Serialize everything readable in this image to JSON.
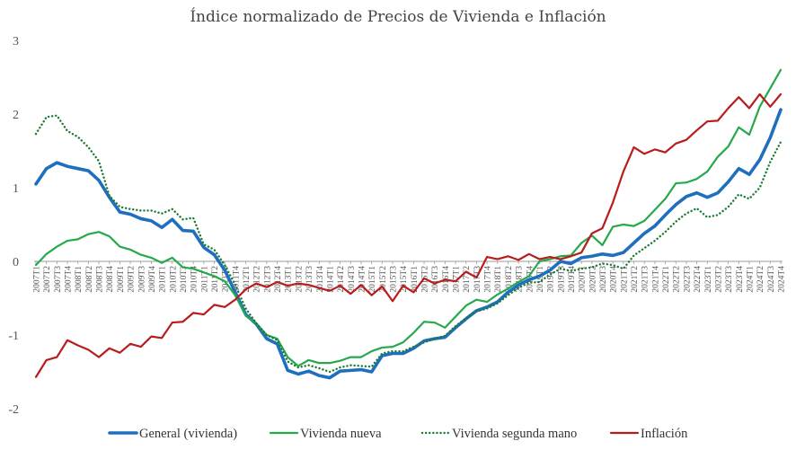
{
  "chart_data": {
    "type": "line",
    "title": "Índice normalizado de Precios de Vivienda e Inflación",
    "xlabel": "",
    "ylabel": "",
    "ylim": [
      -2,
      3
    ],
    "yticks": [
      3,
      2,
      1,
      0,
      -1,
      -2
    ],
    "grid": false,
    "legend_position": "bottom",
    "categories": [
      "2007T1",
      "2007T2",
      "2007T3",
      "2007T4",
      "2008T1",
      "2008T2",
      "2008T3",
      "2008T4",
      "2009T1",
      "2009T2",
      "2009T3",
      "2009T4",
      "2010T1",
      "2010T2",
      "2010T3",
      "2010T4",
      "2011T1",
      "2011T2",
      "2011T3",
      "2011T4",
      "2012T1",
      "2012T2",
      "2012T3",
      "2012T4",
      "2013T1",
      "2013T2",
      "2013T3",
      "2013T4",
      "2014T1",
      "2014T2",
      "2014T3",
      "2014T4",
      "2015T1",
      "2015T2",
      "2015T3",
      "2015T4",
      "2016T1",
      "2016T2",
      "2016T3",
      "2016T4",
      "2017T1",
      "2017T2",
      "2017T3",
      "2017T4",
      "2018T1",
      "2018T2",
      "2018T3",
      "2018T4",
      "2019T1",
      "2019T2",
      "2019T3",
      "2019T4",
      "2020T1",
      "2020T2",
      "2020T3",
      "2020T4",
      "2021T1",
      "2021T2",
      "2021T3",
      "2021T4",
      "2022T1",
      "2022T2",
      "2022T3",
      "2022T4",
      "2023T1",
      "2023T2",
      "2023T3",
      "2023T4",
      "2024T1",
      "2024T2",
      "2024T3",
      "2024T4"
    ],
    "series": [
      {
        "name": "General (vivienda)",
        "color": "#1f6fbf",
        "style": "solid-thick",
        "values": [
          1.05,
          1.26,
          1.34,
          1.29,
          1.26,
          1.23,
          1.1,
          0.87,
          0.67,
          0.64,
          0.58,
          0.55,
          0.46,
          0.57,
          0.42,
          0.41,
          0.19,
          0.09,
          -0.12,
          -0.42,
          -0.72,
          -0.85,
          -1.05,
          -1.12,
          -1.48,
          -1.53,
          -1.49,
          -1.55,
          -1.58,
          -1.49,
          -1.48,
          -1.47,
          -1.5,
          -1.28,
          -1.25,
          -1.25,
          -1.18,
          -1.08,
          -1.05,
          -1.03,
          -0.9,
          -0.78,
          -0.67,
          -0.62,
          -0.55,
          -0.42,
          -0.32,
          -0.25,
          -0.2,
          -0.12,
          0.0,
          -0.03,
          0.05,
          0.07,
          0.1,
          0.08,
          0.12,
          0.25,
          0.38,
          0.48,
          0.63,
          0.77,
          0.88,
          0.93,
          0.87,
          0.93,
          1.08,
          1.26,
          1.18,
          1.38,
          1.68,
          2.06
        ]
      },
      {
        "name": "Vivienda nueva",
        "color": "#27a84b",
        "style": "solid",
        "values": [
          -0.05,
          0.1,
          0.2,
          0.28,
          0.3,
          0.37,
          0.4,
          0.34,
          0.2,
          0.16,
          0.09,
          0.05,
          -0.02,
          0.05,
          -0.08,
          -0.1,
          -0.15,
          -0.2,
          -0.27,
          -0.46,
          -0.74,
          -0.84,
          -1.0,
          -1.05,
          -1.3,
          -1.42,
          -1.34,
          -1.38,
          -1.38,
          -1.35,
          -1.3,
          -1.3,
          -1.22,
          -1.17,
          -1.16,
          -1.1,
          -0.97,
          -0.82,
          -0.83,
          -0.9,
          -0.75,
          -0.6,
          -0.52,
          -0.55,
          -0.45,
          -0.37,
          -0.28,
          -0.2,
          0.0,
          0.03,
          0.07,
          0.08,
          0.25,
          0.35,
          0.22,
          0.47,
          0.5,
          0.48,
          0.55,
          0.7,
          0.85,
          1.06,
          1.07,
          1.12,
          1.22,
          1.42,
          1.56,
          1.82,
          1.72,
          2.1,
          2.35,
          2.6
        ]
      },
      {
        "name": "Vivienda segunda mano",
        "color": "#1e7a32",
        "style": "dotted",
        "values": [
          1.73,
          1.96,
          1.98,
          1.77,
          1.69,
          1.55,
          1.36,
          0.89,
          0.74,
          0.71,
          0.69,
          0.69,
          0.65,
          0.71,
          0.57,
          0.59,
          0.23,
          0.16,
          -0.05,
          -0.32,
          -0.64,
          -0.84,
          -1.0,
          -1.07,
          -1.36,
          -1.44,
          -1.41,
          -1.45,
          -1.5,
          -1.44,
          -1.41,
          -1.42,
          -1.43,
          -1.25,
          -1.22,
          -1.22,
          -1.16,
          -1.1,
          -1.05,
          -1.01,
          -0.88,
          -0.77,
          -0.68,
          -0.64,
          -0.57,
          -0.46,
          -0.36,
          -0.29,
          -0.28,
          -0.18,
          -0.1,
          -0.13,
          -0.1,
          -0.08,
          -0.03,
          -0.05,
          -0.1,
          0.08,
          0.18,
          0.28,
          0.4,
          0.54,
          0.65,
          0.72,
          0.6,
          0.63,
          0.74,
          0.91,
          0.85,
          1.0,
          1.35,
          1.62
        ]
      },
      {
        "name": "Inflación",
        "color": "#b81c1c",
        "style": "solid",
        "values": [
          -1.57,
          -1.34,
          -1.3,
          -1.07,
          -1.14,
          -1.2,
          -1.3,
          -1.18,
          -1.24,
          -1.12,
          -1.16,
          -1.02,
          -1.04,
          -0.83,
          -0.82,
          -0.7,
          -0.72,
          -0.59,
          -0.62,
          -0.52,
          -0.38,
          -0.3,
          -0.35,
          -0.28,
          -0.33,
          -0.3,
          -0.32,
          -0.36,
          -0.4,
          -0.33,
          -0.44,
          -0.32,
          -0.46,
          -0.34,
          -0.54,
          -0.33,
          -0.42,
          -0.23,
          -0.3,
          -0.25,
          -0.27,
          -0.14,
          -0.22,
          0.06,
          0.03,
          0.07,
          0.02,
          0.1,
          0.03,
          0.06,
          0.03,
          0.07,
          0.12,
          0.38,
          0.45,
          0.8,
          1.22,
          1.55,
          1.46,
          1.52,
          1.48,
          1.6,
          1.65,
          1.78,
          1.9,
          1.91,
          2.08,
          2.23,
          2.08,
          2.27,
          2.1,
          2.27
        ]
      }
    ]
  }
}
